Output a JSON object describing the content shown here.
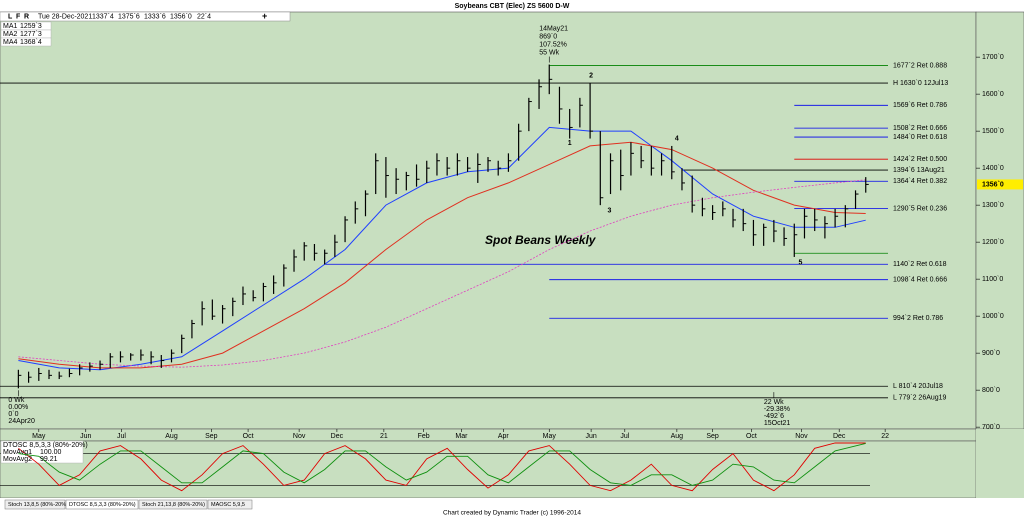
{
  "chart_data": {
    "type": "ohlc",
    "title": "Soybeans CBT (Elec) ZS 5600 D-W",
    "toolbar": {
      "flags": [
        "L",
        "F",
        "R"
      ],
      "date": "Tue 28-Dec-2021",
      "open": "1337`4",
      "high": "1375`6",
      "low": "1333`6",
      "close": "1356`0",
      "change": "22`4"
    },
    "chart_label": "Spot Beans Weekly",
    "high": [
      855,
      850,
      860,
      855,
      850,
      858,
      870,
      875,
      880,
      900,
      905,
      900,
      910,
      905,
      895,
      910,
      950,
      990,
      1040,
      1045,
      1030,
      1050,
      1080,
      1070,
      1090,
      1110,
      1140,
      1180,
      1200,
      1195,
      1180,
      1220,
      1270,
      1310,
      1340,
      1440,
      1430,
      1400,
      1390,
      1410,
      1420,
      1440,
      1430,
      1440,
      1430,
      1440,
      1430,
      1420,
      1440,
      1520,
      1590,
      1640,
      1680,
      1620,
      1560,
      1590,
      1630,
      1500,
      1440,
      1450,
      1470,
      1460,
      1460,
      1440,
      1460,
      1400,
      1380,
      1320,
      1300,
      1310,
      1290,
      1290,
      1260,
      1250,
      1260,
      1240,
      1250,
      1290,
      1290,
      1270,
      1290,
      1300,
      1340,
      1375.75
    ],
    "low": [
      805,
      820,
      825,
      830,
      830,
      835,
      840,
      850,
      855,
      860,
      875,
      880,
      880,
      870,
      860,
      875,
      900,
      940,
      975,
      990,
      980,
      1000,
      1030,
      1040,
      1040,
      1060,
      1080,
      1120,
      1150,
      1150,
      1140,
      1160,
      1200,
      1250,
      1270,
      1330,
      1320,
      1330,
      1340,
      1350,
      1360,
      1380,
      1380,
      1380,
      1390,
      1360,
      1390,
      1380,
      1390,
      1420,
      1500,
      1560,
      1600,
      1520,
      1480,
      1510,
      1480,
      1300,
      1330,
      1340,
      1380,
      1400,
      1380,
      1380,
      1370,
      1340,
      1280,
      1270,
      1260,
      1270,
      1240,
      1230,
      1190,
      1190,
      1200,
      1190,
      1160,
      1210,
      1230,
      1210,
      1240,
      1240,
      1290,
      1333.75
    ],
    "close": [
      840,
      835,
      845,
      840,
      838,
      845,
      860,
      865,
      870,
      890,
      890,
      895,
      895,
      890,
      880,
      900,
      940,
      980,
      1020,
      1000,
      1020,
      1040,
      1060,
      1050,
      1080,
      1090,
      1130,
      1160,
      1190,
      1170,
      1170,
      1200,
      1260,
      1290,
      1330,
      1420,
      1380,
      1370,
      1380,
      1370,
      1400,
      1420,
      1400,
      1420,
      1400,
      1410,
      1420,
      1400,
      1420,
      1500,
      1580,
      1620,
      1640,
      1560,
      1510,
      1570,
      1500,
      1320,
      1420,
      1380,
      1440,
      1420,
      1400,
      1420,
      1390,
      1360,
      1300,
      1290,
      1280,
      1290,
      1260,
      1250,
      1220,
      1240,
      1230,
      1210,
      1220,
      1270,
      1260,
      1250,
      1270,
      1290,
      1330,
      1356
    ],
    "xticks": [
      {
        "value": 2,
        "label": "May"
      },
      {
        "value": 6.6,
        "label": "Jun"
      },
      {
        "value": 10.1,
        "label": "Jul"
      },
      {
        "value": 15,
        "label": "Aug"
      },
      {
        "value": 18.9,
        "label": "Sep"
      },
      {
        "value": 22.5,
        "label": "Oct"
      },
      {
        "value": 27.5,
        "label": "Nov"
      },
      {
        "value": 31.2,
        "label": "Dec"
      },
      {
        "value": 35.8,
        "label": "21"
      },
      {
        "value": 39.7,
        "label": "Feb"
      },
      {
        "value": 43.4,
        "label": "Mar"
      },
      {
        "value": 47.5,
        "label": "Apr"
      },
      {
        "value": 52,
        "label": "May"
      },
      {
        "value": 56.1,
        "label": "Jun"
      },
      {
        "value": 59.4,
        "label": "Jul"
      },
      {
        "value": 64.5,
        "label": "Aug"
      },
      {
        "value": 68,
        "label": "Sep"
      },
      {
        "value": 71.8,
        "label": "Oct"
      },
      {
        "value": 76.7,
        "label": "Nov"
      },
      {
        "value": 80.4,
        "label": "Dec"
      },
      {
        "value": 84.9,
        "label": "22"
      }
    ],
    "xlim": [
      -1.8,
      93.8
    ],
    "ylim": [
      695,
      1822
    ],
    "yticks": [
      {
        "value": 1700,
        "label": "1700`0"
      },
      {
        "value": 1600,
        "label": "1600`0"
      },
      {
        "value": 1500,
        "label": "1500`0"
      },
      {
        "value": 1400,
        "label": "1400`0"
      },
      {
        "value": 1300,
        "label": "1300`0"
      },
      {
        "value": 1200,
        "label": "1200`0"
      },
      {
        "value": 1100,
        "label": "1100`0"
      },
      {
        "value": 1000,
        "label": "1000`0"
      },
      {
        "value": 900,
        "label": "900`0"
      },
      {
        "value": 800,
        "label": "800`0"
      },
      {
        "value": 700,
        "label": "700`0"
      }
    ],
    "last_price": {
      "value": 1356,
      "label": "1356`0"
    },
    "moving_averages": [
      {
        "name": "MA1",
        "value_label": "1259`3",
        "color": "#1f3fff",
        "dashed": false,
        "x": [
          0,
          4,
          8,
          12,
          16,
          20,
          24,
          28,
          32,
          36,
          40,
          44,
          48,
          52,
          56,
          60,
          64,
          68,
          72,
          76,
          80,
          83
        ],
        "values": [
          880,
          860,
          855,
          870,
          890,
          960,
          1030,
          1100,
          1180,
          1300,
          1360,
          1390,
          1400,
          1510,
          1500,
          1500,
          1420,
          1330,
          1270,
          1240,
          1240,
          1259.375
        ]
      },
      {
        "name": "MA2",
        "value_label": "1277`3",
        "color": "#e03020",
        "dashed": false,
        "x": [
          0,
          4,
          8,
          12,
          16,
          20,
          24,
          28,
          32,
          36,
          40,
          44,
          48,
          52,
          56,
          60,
          64,
          68,
          72,
          76,
          80,
          83
        ],
        "values": [
          885,
          870,
          860,
          860,
          870,
          900,
          960,
          1020,
          1090,
          1180,
          1260,
          1320,
          1360,
          1410,
          1460,
          1470,
          1450,
          1400,
          1340,
          1300,
          1280,
          1277.375
        ]
      },
      {
        "name": "MA4",
        "value_label": "1368`4",
        "color": "#e040c0",
        "dashed": true,
        "x": [
          0,
          4,
          8,
          12,
          16,
          20,
          24,
          28,
          32,
          36,
          40,
          44,
          48,
          52,
          56,
          60,
          64,
          68,
          72,
          76,
          80,
          83
        ],
        "values": [
          890,
          880,
          870,
          865,
          862,
          868,
          880,
          900,
          930,
          970,
          1020,
          1070,
          1120,
          1180,
          1230,
          1270,
          1300,
          1320,
          1335,
          1348,
          1360,
          1368.5
        ]
      }
    ],
    "levels": [
      {
        "value": 1677.25,
        "label": "1677`2 Ret 0.888",
        "color": "#008000",
        "text_color": "#0000ee",
        "from": 52
      },
      {
        "value": 1630,
        "label": "H 1630`0 12Jul13",
        "color": "#000000",
        "text_color": "#000000"
      },
      {
        "value": 1569.75,
        "label": "1569`6 Ret 0.786",
        "color": "#0000ee",
        "text_color": "#0000ee",
        "from": 76
      },
      {
        "value": 1508.25,
        "label": "1508`2 Ret 0.666",
        "color": "#0000ee",
        "text_color": "#0000ee",
        "from": 76
      },
      {
        "value": 1484,
        "label": "1484`0 Ret 0.618",
        "color": "#0000ee",
        "text_color": "#0000ee",
        "from": 76
      },
      {
        "value": 1424.25,
        "label": "1424`2 Ret 0.500",
        "color": "#e00000",
        "text_color": "#e00000",
        "from": 76
      },
      {
        "value": 1394.75,
        "label": "1394`6 13Aug21",
        "color": "#000000",
        "text_color": "#000000",
        "from": 65
      },
      {
        "value": 1364.5,
        "label": "1364`4 Ret 0.382",
        "color": "#0000ee",
        "text_color": "#0000ee",
        "from": 76
      },
      {
        "value": 1290.625,
        "label": "1290`5 Ret 0.236",
        "color": "#0000ee",
        "text_color": "#0000ee",
        "from": 76
      },
      {
        "value": 1170,
        "color": "#008000",
        "from": 76
      },
      {
        "value": 1140.25,
        "label": "1140`2 Ret 0.618",
        "color": "#0000ee",
        "text_color": "#0000ee",
        "from": 30
      },
      {
        "value": 1098.5,
        "label": "1098`4 Ret 0.666",
        "color": "#0000ee",
        "text_color": "#0000ee",
        "from": 52
      },
      {
        "value": 994.25,
        "label": "994`2 Ret 0.786",
        "color": "#0000ee",
        "text_color": "#0000ee",
        "from": 52
      },
      {
        "value": 810.5,
        "label": "L 810`4 20Jul18",
        "color": "#000000",
        "text_color": "#000000"
      },
      {
        "value": 779.25,
        "label": "L 779`2 26Aug19",
        "color": "#000000",
        "text_color": "#000000"
      }
    ],
    "annotations": [
      {
        "x": 52,
        "price": 1680,
        "side": "above",
        "lines": [
          "14May21",
          "869`0",
          "107.52%",
          "55 Wk"
        ]
      },
      {
        "x": 0,
        "price": 805,
        "side": "below",
        "lines": [
          "0 Wk",
          "0.00%",
          "0`0",
          "24Apr20"
        ]
      },
      {
        "x": 74,
        "price": 800,
        "side": "below",
        "lines": [
          "22 Wk",
          "-29.38%",
          "-492`6",
          "15Oct21"
        ]
      }
    ],
    "waves": [
      {
        "label": "1",
        "x": 54,
        "price": 1468
      },
      {
        "label": "2",
        "x": 56.1,
        "price": 1650
      },
      {
        "label": "3",
        "x": 57.9,
        "price": 1285
      },
      {
        "label": "4",
        "x": 64.5,
        "price": 1480
      },
      {
        "label": "5",
        "x": 76.6,
        "price": 1145
      }
    ],
    "oscillator": {
      "name": "DTOSC 8,5,3,3 (80%-20%)",
      "ylim": [
        0,
        100
      ],
      "levels": [
        80,
        20
      ],
      "series": [
        {
          "name": "MovAvg1",
          "value_label": "100.00",
          "color": "#e00000",
          "x": [
            0,
            2,
            4,
            6,
            8,
            10,
            12,
            14,
            16,
            18,
            20,
            22,
            24,
            26,
            28,
            30,
            32,
            34,
            36,
            38,
            40,
            42,
            44,
            46,
            48,
            50,
            52,
            54,
            56,
            58,
            60,
            62,
            64,
            66,
            68,
            70,
            72,
            74,
            76,
            78,
            80,
            83
          ],
          "values": [
            90,
            60,
            20,
            40,
            85,
            95,
            70,
            30,
            10,
            40,
            80,
            95,
            60,
            20,
            30,
            80,
            95,
            70,
            30,
            20,
            70,
            90,
            50,
            15,
            40,
            85,
            95,
            60,
            20,
            10,
            30,
            60,
            20,
            10,
            50,
            80,
            30,
            10,
            40,
            90,
            100,
            100
          ]
        },
        {
          "name": "MovAvg2",
          "value_label": "99.21",
          "color": "#109010",
          "x": [
            0,
            2,
            4,
            6,
            8,
            10,
            12,
            14,
            16,
            18,
            20,
            22,
            24,
            26,
            28,
            30,
            32,
            34,
            36,
            38,
            40,
            42,
            44,
            46,
            48,
            50,
            52,
            54,
            56,
            58,
            60,
            62,
            64,
            66,
            68,
            70,
            72,
            74,
            76,
            78,
            80,
            83
          ],
          "values": [
            80,
            75,
            45,
            30,
            60,
            85,
            85,
            55,
            25,
            25,
            55,
            85,
            80,
            45,
            25,
            50,
            85,
            85,
            55,
            30,
            45,
            75,
            75,
            40,
            25,
            55,
            85,
            85,
            50,
            25,
            20,
            40,
            40,
            20,
            30,
            60,
            55,
            30,
            25,
            55,
            85,
            99.21
          ]
        }
      ]
    },
    "tabs": [
      "Stoch 13,8,5 (80%-20%)",
      "DTOSC 8,5,3,3 (80%-20%)",
      "Stoch 21,13,8 (80%-20%)",
      "MAOSC 5,9,5"
    ],
    "footer": "Chart created by Dynamic Trader  (c) 1996-2014"
  }
}
